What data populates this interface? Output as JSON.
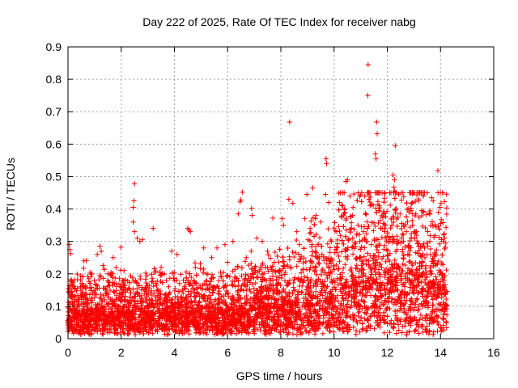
{
  "chart_data": {
    "type": "scatter",
    "title": "Day 222 of 2025, Rate Of TEC Index for receiver nabg",
    "xlabel": "GPS time / hours",
    "ylabel": "ROTI / TECUs",
    "xlim": [
      0,
      16
    ],
    "ylim": [
      0,
      0.9
    ],
    "xticks": [
      0,
      2,
      4,
      6,
      8,
      10,
      12,
      14,
      16
    ],
    "yticks": [
      0,
      0.1,
      0.2,
      0.3,
      0.4,
      0.5,
      0.6,
      0.7,
      0.8,
      0.9
    ],
    "xtick_labels": [
      "0",
      "2",
      "4",
      "6",
      "8",
      "10",
      "12",
      "14",
      "16"
    ],
    "ytick_labels": [
      "0",
      "0.1",
      "0.2",
      "0.3",
      "0.4",
      "0.5",
      "0.6",
      "0.7",
      "0.8",
      "0.9"
    ],
    "grid": true,
    "marker": "+",
    "color": "#ff0000",
    "data_time_range": [
      0,
      14.25
    ],
    "series": [
      {
        "name": "ROTI",
        "points": [
          [
            11.28,
            0.845
          ],
          [
            11.27,
            0.75
          ],
          [
            8.33,
            0.668
          ],
          [
            11.6,
            0.668
          ],
          [
            11.62,
            0.632
          ],
          [
            12.3,
            0.595
          ],
          [
            11.55,
            0.57
          ],
          [
            11.58,
            0.555
          ],
          [
            9.7,
            0.555
          ],
          [
            9.72,
            0.54
          ],
          [
            13.9,
            0.518
          ],
          [
            12.22,
            0.505
          ],
          [
            12.27,
            0.49
          ],
          [
            10.5,
            0.49
          ],
          [
            10.45,
            0.485
          ],
          [
            2.5,
            0.478
          ],
          [
            12.25,
            0.467
          ],
          [
            12.28,
            0.455
          ],
          [
            9.2,
            0.465
          ],
          [
            8.98,
            0.445
          ],
          [
            9.68,
            0.445
          ],
          [
            6.55,
            0.452
          ],
          [
            10.6,
            0.44
          ],
          [
            8.3,
            0.43
          ],
          [
            8.45,
            0.418
          ],
          [
            2.48,
            0.425
          ],
          [
            2.45,
            0.405
          ],
          [
            6.5,
            0.428
          ],
          [
            6.47,
            0.422
          ],
          [
            9.8,
            0.42
          ],
          [
            10.2,
            0.42
          ],
          [
            11.7,
            0.41
          ],
          [
            11.68,
            0.395
          ],
          [
            14.02,
            0.418
          ],
          [
            13.98,
            0.405
          ],
          [
            13.92,
            0.39
          ],
          [
            13.3,
            0.395
          ],
          [
            13.35,
            0.39
          ],
          [
            12.9,
            0.395
          ],
          [
            12.95,
            0.385
          ],
          [
            12.48,
            0.385
          ],
          [
            10.32,
            0.41
          ],
          [
            10.38,
            0.4
          ],
          [
            9.32,
            0.38
          ],
          [
            9.3,
            0.37
          ],
          [
            8.9,
            0.37
          ],
          [
            8.05,
            0.37
          ],
          [
            7.7,
            0.372
          ],
          [
            6.9,
            0.402
          ],
          [
            6.92,
            0.38
          ],
          [
            6.4,
            0.385
          ],
          [
            2.45,
            0.36
          ],
          [
            2.5,
            0.33
          ],
          [
            4.5,
            0.34
          ],
          [
            4.55,
            0.335
          ],
          [
            4.6,
            0.33
          ],
          [
            3.2,
            0.34
          ],
          [
            0.05,
            0.29
          ],
          [
            0.07,
            0.275
          ],
          [
            0.1,
            0.262
          ],
          [
            1.2,
            0.285
          ],
          [
            1.25,
            0.27
          ],
          [
            1.1,
            0.26
          ],
          [
            2.6,
            0.31
          ],
          [
            2.7,
            0.3
          ],
          [
            2.8,
            0.305
          ],
          [
            5.1,
            0.28
          ],
          [
            5.6,
            0.28
          ],
          [
            5.9,
            0.29
          ],
          [
            6.2,
            0.3
          ],
          [
            7.1,
            0.31
          ],
          [
            7.3,
            0.3
          ],
          [
            8.1,
            0.35
          ],
          [
            8.6,
            0.33
          ],
          [
            9.1,
            0.34
          ],
          [
            9.5,
            0.36
          ],
          [
            10.1,
            0.33
          ],
          [
            10.9,
            0.35
          ],
          [
            11.1,
            0.33
          ],
          [
            11.9,
            0.34
          ],
          [
            12.6,
            0.32
          ],
          [
            13.1,
            0.33
          ],
          [
            13.6,
            0.3
          ],
          [
            14.1,
            0.3
          ],
          [
            14.15,
            0.31
          ],
          [
            14.2,
            0.295
          ],
          [
            14.12,
            0.32
          ],
          [
            3.9,
            0.27
          ],
          [
            4.1,
            0.26
          ],
          [
            5.4,
            0.25
          ],
          [
            1.7,
            0.25
          ],
          [
            0.6,
            0.24
          ],
          [
            0.9,
            0.2
          ],
          [
            1.5,
            0.2
          ],
          [
            2.1,
            0.18
          ],
          [
            3.5,
            0.22
          ],
          [
            5.2,
            0.2
          ],
          [
            6.7,
            0.25
          ],
          [
            7.5,
            0.27
          ],
          [
            8.7,
            0.29
          ],
          [
            9.9,
            0.3
          ],
          [
            10.7,
            0.31
          ],
          [
            11.4,
            0.29
          ],
          [
            12.1,
            0.3
          ],
          [
            12.8,
            0.28
          ],
          [
            13.4,
            0.28
          ],
          [
            13.8,
            0.26
          ],
          [
            14.05,
            0.2
          ],
          [
            14.08,
            0.15
          ],
          [
            14.18,
            0.09
          ],
          [
            14.22,
            0.05
          ]
        ]
      }
    ]
  }
}
